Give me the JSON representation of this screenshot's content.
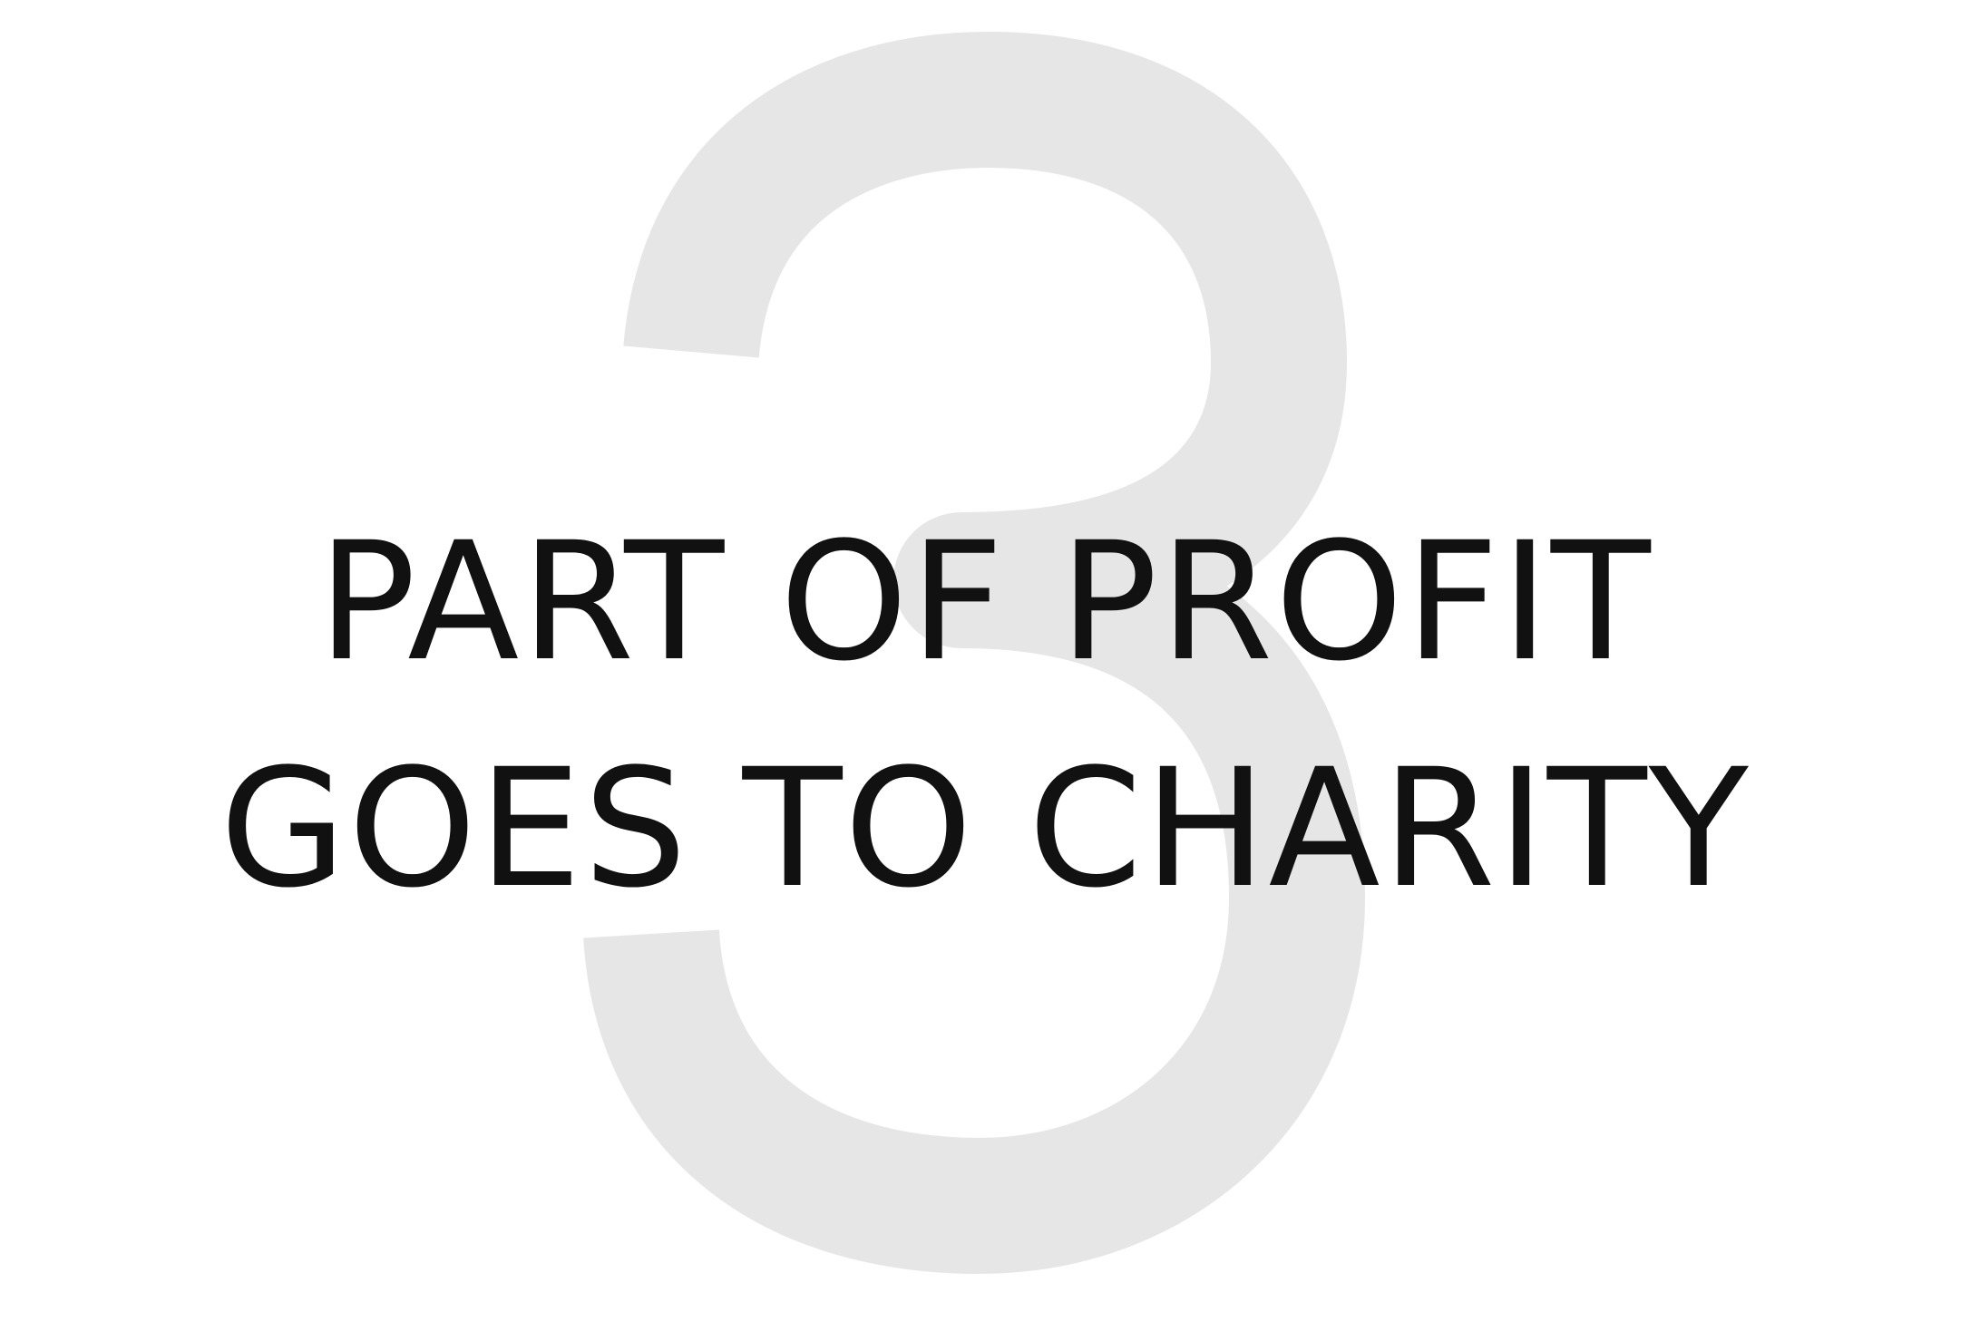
{
  "background_numeral": {
    "text": "3",
    "color": "#e6e6e6"
  },
  "headline": {
    "line1": "PART OF PROFIT",
    "line2": "GOES TO CHARITY",
    "color": "#111111"
  }
}
